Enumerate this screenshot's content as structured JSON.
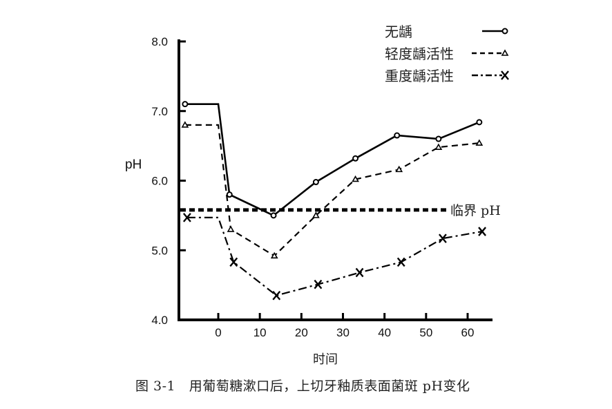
{
  "chart_data": {
    "type": "line",
    "title": "",
    "caption": "图 3-1   用葡萄糖漱口后，上切牙釉质表面菌斑 pH变化",
    "xlabel": "时间",
    "ylabel": "pH",
    "xlim": [
      -10,
      66
    ],
    "ylim": [
      4.0,
      8.0
    ],
    "xticks": [
      0,
      10,
      20,
      30,
      40,
      50,
      60
    ],
    "yticks": [
      "4.0",
      "5.0",
      "6.0",
      "7.0",
      "8.0"
    ],
    "grid": false,
    "legend_position": "top-right",
    "series": [
      {
        "name": "无龋",
        "style": "solid",
        "marker": "circle",
        "x": [
          -8,
          0,
          2.7,
          13.3,
          23.5,
          33,
          43,
          53,
          62.8
        ],
        "values": [
          7.1,
          7.1,
          5.8,
          5.5,
          5.98,
          6.32,
          6.65,
          6.6,
          6.84
        ],
        "marker_indices": [
          0,
          2,
          3,
          4,
          5,
          6,
          7,
          8
        ]
      },
      {
        "name": "轻度龋活性",
        "style": "dashed",
        "marker": "triangle",
        "x": [
          -8,
          0,
          3,
          13.5,
          23.5,
          33,
          43.5,
          53,
          62.8
        ],
        "values": [
          6.8,
          6.8,
          5.3,
          4.92,
          5.5,
          6.02,
          6.16,
          6.48,
          6.54
        ],
        "marker_indices": [
          0,
          2,
          3,
          4,
          5,
          6,
          7,
          8
        ]
      },
      {
        "name": "重度龋活性",
        "style": "dash-dot",
        "marker": "x",
        "x": [
          -7.5,
          0,
          3.7,
          14,
          24,
          34,
          44,
          54,
          63.5
        ],
        "values": [
          5.47,
          5.47,
          4.83,
          4.35,
          4.51,
          4.68,
          4.83,
          5.17,
          5.27
        ],
        "marker_indices": [
          0,
          2,
          3,
          4,
          5,
          6,
          7,
          8
        ]
      }
    ],
    "annotations": [
      {
        "type": "hline",
        "y": 5.58,
        "label": "临界 pH",
        "style": "dotted-thick"
      }
    ]
  }
}
